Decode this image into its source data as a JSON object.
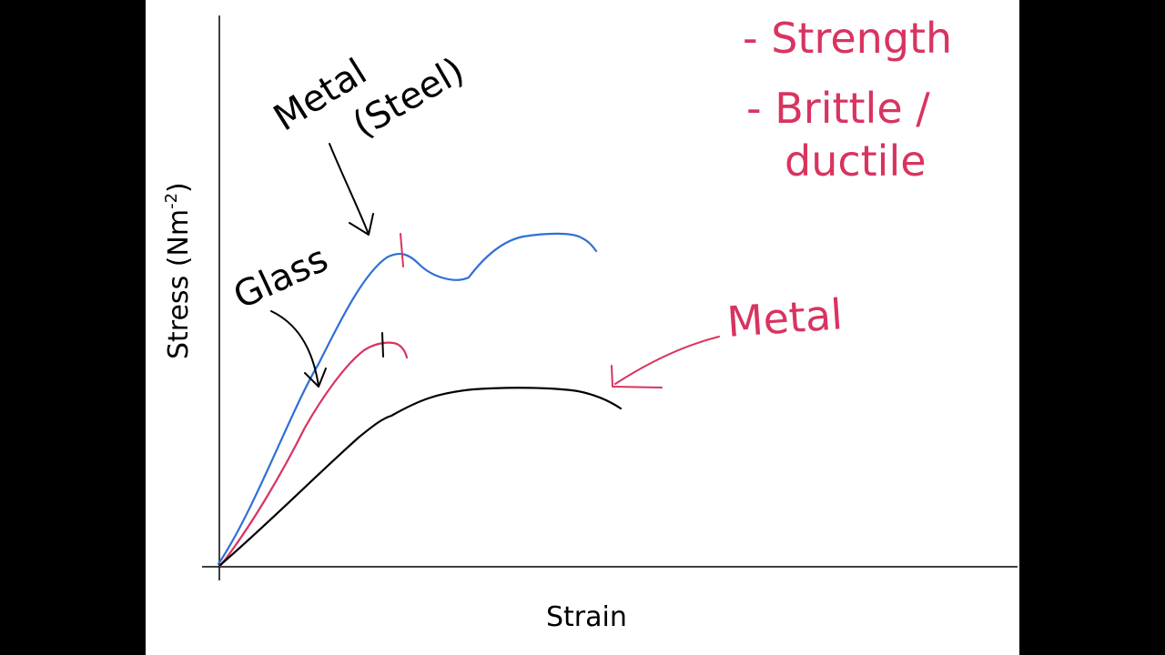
{
  "colors": {
    "background": "#000000",
    "board": "#ffffff",
    "axis": "#000000",
    "steel_curve": "#2f6fd6",
    "glass_curve": "#d8345f",
    "metal_curve": "#000000",
    "annotation_black": "#000000",
    "annotation_pink": "#d8345f"
  },
  "axes": {
    "x_label": "Strain",
    "y_label_main": "Stress (Nm",
    "y_label_sup": "-2",
    "y_label_close": ")"
  },
  "annotations": {
    "metal_steel_line1": "Metal",
    "metal_steel_line2": "(Steel)",
    "glass": "Glass",
    "metal": "Metal"
  },
  "notes": {
    "line1": "- Strength",
    "line2": "- Brittle /",
    "line3": "ductile"
  },
  "curves": [
    {
      "name": "steel",
      "color_key": "steel_curve"
    },
    {
      "name": "glass",
      "color_key": "glass_curve"
    },
    {
      "name": "metal",
      "color_key": "metal_curve"
    }
  ]
}
